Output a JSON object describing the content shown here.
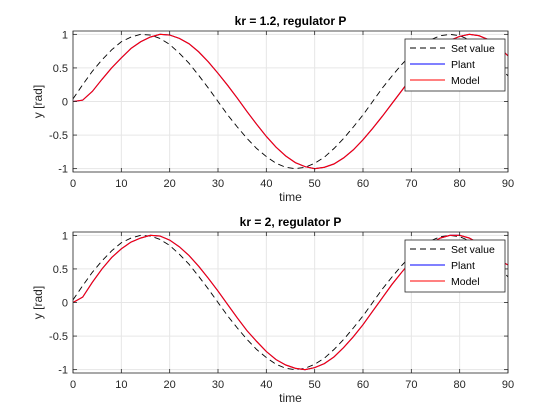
{
  "colors": {
    "set_value": "#000000",
    "plant": "#0000ff",
    "model": "#ff0000",
    "grid": "#e6e6e6",
    "axis": "#262626"
  },
  "chart_data": [
    {
      "type": "line",
      "title": "kr = 1.2, regulator P",
      "xlabel": "time",
      "ylabel": "y [rad]",
      "xlim": [
        0,
        90
      ],
      "ylim": [
        -1.05,
        1.05
      ],
      "xticks": [
        0,
        10,
        20,
        30,
        40,
        50,
        60,
        70,
        80,
        90
      ],
      "yticks": [
        -1,
        -0.5,
        0,
        0.5,
        1
      ],
      "grid": true,
      "legend": "top-right",
      "series": [
        {
          "name": "Set value",
          "style": "dashed",
          "color": "#000000",
          "x": [
            0,
            2,
            4,
            6,
            8,
            10,
            12,
            14,
            16,
            18,
            20,
            22,
            24,
            26,
            28,
            30,
            32,
            34,
            36,
            38,
            40,
            42,
            44,
            46,
            48,
            50,
            52,
            54,
            56,
            58,
            60,
            62,
            64,
            66,
            68,
            70,
            72,
            74,
            76,
            78,
            80,
            82,
            84,
            86,
            88,
            90
          ],
          "y": [
            0.04,
            0.25,
            0.45,
            0.62,
            0.77,
            0.89,
            0.96,
            1.0,
            0.99,
            0.94,
            0.85,
            0.72,
            0.57,
            0.39,
            0.2,
            0.0,
            -0.2,
            -0.38,
            -0.55,
            -0.7,
            -0.82,
            -0.92,
            -0.98,
            -1.0,
            -0.98,
            -0.92,
            -0.83,
            -0.7,
            -0.55,
            -0.38,
            -0.2,
            0.0,
            0.2,
            0.38,
            0.55,
            0.7,
            0.83,
            0.92,
            0.98,
            1.0,
            0.98,
            0.92,
            0.83,
            0.7,
            0.55,
            0.38
          ]
        },
        {
          "name": "Plant",
          "style": "solid",
          "color": "#0000ff",
          "x": [
            0,
            2,
            4,
            6,
            8,
            10,
            12,
            14,
            16,
            18,
            20,
            22,
            24,
            26,
            28,
            30,
            32,
            34,
            36,
            38,
            40,
            42,
            44,
            46,
            48,
            50,
            52,
            54,
            56,
            58,
            60,
            62,
            64,
            66,
            68,
            70,
            72,
            74,
            76,
            78,
            80,
            82,
            84,
            86,
            88,
            90
          ],
          "y": [
            0.0,
            0.02,
            0.15,
            0.33,
            0.5,
            0.65,
            0.79,
            0.89,
            0.96,
            1.0,
            0.99,
            0.94,
            0.86,
            0.74,
            0.59,
            0.42,
            0.24,
            0.05,
            -0.15,
            -0.34,
            -0.52,
            -0.68,
            -0.81,
            -0.91,
            -0.97,
            -1.0,
            -0.98,
            -0.93,
            -0.84,
            -0.72,
            -0.57,
            -0.4,
            -0.22,
            -0.03,
            0.16,
            0.35,
            0.52,
            0.68,
            0.81,
            0.91,
            0.97,
            1.0,
            0.98,
            0.92,
            0.82,
            0.68
          ]
        },
        {
          "name": "Model",
          "style": "solid",
          "color": "#ff0000",
          "x": [
            0,
            2,
            4,
            6,
            8,
            10,
            12,
            14,
            16,
            18,
            20,
            22,
            24,
            26,
            28,
            30,
            32,
            34,
            36,
            38,
            40,
            42,
            44,
            46,
            48,
            50,
            52,
            54,
            56,
            58,
            60,
            62,
            64,
            66,
            68,
            70,
            72,
            74,
            76,
            78,
            80,
            82,
            84,
            86,
            88,
            90
          ],
          "y": [
            0.0,
            0.02,
            0.15,
            0.33,
            0.5,
            0.65,
            0.79,
            0.89,
            0.96,
            1.0,
            0.99,
            0.94,
            0.86,
            0.74,
            0.59,
            0.42,
            0.24,
            0.05,
            -0.15,
            -0.34,
            -0.52,
            -0.68,
            -0.81,
            -0.91,
            -0.97,
            -1.0,
            -0.98,
            -0.93,
            -0.84,
            -0.72,
            -0.57,
            -0.4,
            -0.22,
            -0.03,
            0.16,
            0.35,
            0.52,
            0.68,
            0.81,
            0.91,
            0.97,
            1.0,
            0.98,
            0.92,
            0.82,
            0.68
          ]
        }
      ]
    },
    {
      "type": "line",
      "title": "kr = 2, regulator P",
      "xlabel": "time",
      "ylabel": "y [rad]",
      "xlim": [
        0,
        90
      ],
      "ylim": [
        -1.05,
        1.05
      ],
      "xticks": [
        0,
        10,
        20,
        30,
        40,
        50,
        60,
        70,
        80,
        90
      ],
      "yticks": [
        -1,
        -0.5,
        0,
        0.5,
        1
      ],
      "grid": true,
      "legend": "top-right",
      "series": [
        {
          "name": "Set value",
          "style": "dashed",
          "color": "#000000",
          "x": [
            0,
            2,
            4,
            6,
            8,
            10,
            12,
            14,
            16,
            18,
            20,
            22,
            24,
            26,
            28,
            30,
            32,
            34,
            36,
            38,
            40,
            42,
            44,
            46,
            48,
            50,
            52,
            54,
            56,
            58,
            60,
            62,
            64,
            66,
            68,
            70,
            72,
            74,
            76,
            78,
            80,
            82,
            84,
            86,
            88,
            90
          ],
          "y": [
            0.04,
            0.25,
            0.45,
            0.62,
            0.77,
            0.89,
            0.96,
            1.0,
            0.99,
            0.94,
            0.85,
            0.72,
            0.57,
            0.39,
            0.2,
            0.0,
            -0.2,
            -0.38,
            -0.55,
            -0.7,
            -0.82,
            -0.92,
            -0.98,
            -1.0,
            -0.98,
            -0.92,
            -0.83,
            -0.7,
            -0.55,
            -0.38,
            -0.2,
            0.0,
            0.2,
            0.38,
            0.55,
            0.7,
            0.83,
            0.92,
            0.98,
            1.0,
            0.98,
            0.92,
            0.83,
            0.7,
            0.55,
            0.38
          ]
        },
        {
          "name": "Plant",
          "style": "solid",
          "color": "#0000ff",
          "x": [
            0,
            2,
            4,
            6,
            8,
            10,
            12,
            14,
            16,
            18,
            20,
            22,
            24,
            26,
            28,
            30,
            32,
            34,
            36,
            38,
            40,
            42,
            44,
            46,
            48,
            50,
            52,
            54,
            56,
            58,
            60,
            62,
            64,
            66,
            68,
            70,
            72,
            74,
            76,
            78,
            80,
            82,
            84,
            86,
            88,
            90
          ],
          "y": [
            0.0,
            0.08,
            0.3,
            0.5,
            0.67,
            0.8,
            0.9,
            0.96,
            1.0,
            0.99,
            0.93,
            0.83,
            0.7,
            0.54,
            0.36,
            0.17,
            -0.03,
            -0.23,
            -0.42,
            -0.58,
            -0.73,
            -0.85,
            -0.93,
            -0.98,
            -1.0,
            -0.97,
            -0.91,
            -0.81,
            -0.67,
            -0.51,
            -0.33,
            -0.13,
            0.07,
            0.27,
            0.45,
            0.62,
            0.76,
            0.88,
            0.96,
            1.0,
            1.0,
            0.96,
            0.88,
            0.77,
            0.63,
            0.56
          ]
        },
        {
          "name": "Model",
          "style": "solid",
          "color": "#ff0000",
          "x": [
            0,
            2,
            4,
            6,
            8,
            10,
            12,
            14,
            16,
            18,
            20,
            22,
            24,
            26,
            28,
            30,
            32,
            34,
            36,
            38,
            40,
            42,
            44,
            46,
            48,
            50,
            52,
            54,
            56,
            58,
            60,
            62,
            64,
            66,
            68,
            70,
            72,
            74,
            76,
            78,
            80,
            82,
            84,
            86,
            88,
            90
          ],
          "y": [
            0.0,
            0.08,
            0.3,
            0.5,
            0.67,
            0.8,
            0.9,
            0.96,
            1.0,
            0.99,
            0.93,
            0.83,
            0.7,
            0.54,
            0.36,
            0.17,
            -0.03,
            -0.23,
            -0.42,
            -0.58,
            -0.73,
            -0.85,
            -0.93,
            -0.98,
            -1.0,
            -0.97,
            -0.91,
            -0.81,
            -0.67,
            -0.51,
            -0.33,
            -0.13,
            0.07,
            0.27,
            0.45,
            0.62,
            0.76,
            0.88,
            0.96,
            1.0,
            1.0,
            0.96,
            0.88,
            0.77,
            0.63,
            0.56
          ]
        }
      ]
    }
  ]
}
